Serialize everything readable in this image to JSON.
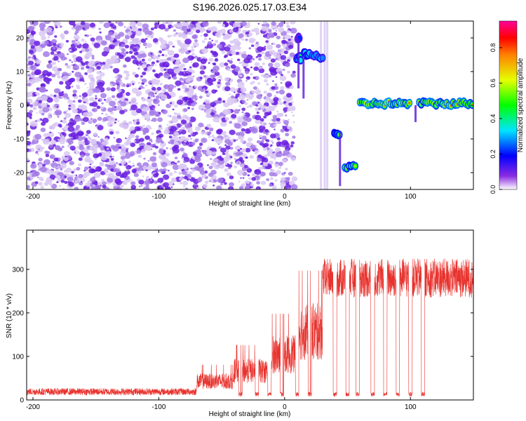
{
  "title": "S196.2026.025.17.03.E34",
  "chart_data": [
    {
      "type": "heatmap",
      "panel": "spectrogram",
      "xlabel": "Height of straight line (km)",
      "ylabel": "Frequency (Hz)",
      "xlim": [
        -205,
        150
      ],
      "ylim": [
        -25,
        25
      ],
      "xticks": [
        -200,
        -100,
        0,
        100
      ],
      "yticks": [
        -20,
        -10,
        0,
        10,
        20
      ],
      "colorbar": {
        "label": "Normalized spectral amplitude",
        "range": [
          0.0,
          0.95
        ],
        "ticks": [
          0.0,
          0.2,
          0.4,
          0.6,
          0.8
        ]
      },
      "noise_region_x": [
        -205,
        8
      ],
      "features": [
        {
          "x_range": [
            9,
            13
          ],
          "freq": 14,
          "amplitude": 0.6
        },
        {
          "x_range": [
            10,
            12
          ],
          "freq": 20,
          "amplitude": 0.4
        },
        {
          "x_range": [
            15,
            20
          ],
          "freq": 15,
          "amplitude": 0.55
        },
        {
          "x_range": [
            21,
            31
          ],
          "freq": 14.5,
          "amplitude": 0.5
        },
        {
          "x_range": [
            39,
            44
          ],
          "freq": -8.5,
          "amplitude": 0.65
        },
        {
          "x_range": [
            47,
            57
          ],
          "freq": -18.5,
          "amplitude": 0.7
        },
        {
          "x_range": [
            59,
            100
          ],
          "freq": 0.5,
          "amplitude": 0.85
        },
        {
          "x_range": [
            106,
            150
          ],
          "freq": 0.5,
          "amplitude": 0.8
        }
      ]
    },
    {
      "type": "line",
      "panel": "snr",
      "xlabel": "Height of straight line (km)",
      "ylabel": "SNR (10 * v/v)",
      "xlim": [
        -205,
        150
      ],
      "ylim": [
        0,
        390
      ],
      "xticks": [
        -200,
        -100,
        0,
        100
      ],
      "yticks": [
        0,
        100,
        200,
        300
      ],
      "series_color": "#e8322d",
      "segments": [
        {
          "x": [
            -205,
            -70
          ],
          "level": 20
        },
        {
          "x": [
            -70,
            -40
          ],
          "level": 45
        },
        {
          "x": [
            -40,
            -10
          ],
          "level": 70
        },
        {
          "x": [
            -10,
            10
          ],
          "level": 110
        },
        {
          "x": [
            10,
            30
          ],
          "level": 165
        },
        {
          "x": [
            30,
            150
          ],
          "level": 280
        }
      ],
      "dropouts_x": [
        -35,
        -22,
        -12,
        -2,
        10,
        20,
        40,
        50,
        58,
        70,
        80,
        90,
        100,
        110
      ]
    }
  ]
}
